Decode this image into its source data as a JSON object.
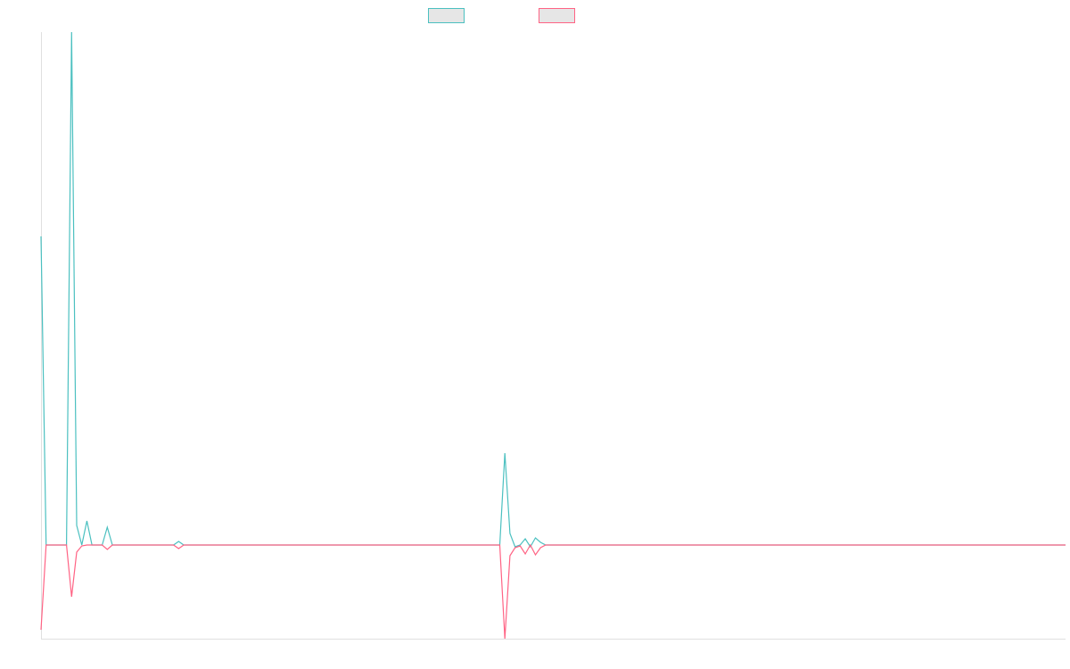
{
  "chart_data": {
    "type": "line",
    "ylim": [
      -105,
      575
    ],
    "series": [
      {
        "color": "#4bc0c0",
        "values": [
          346,
          0,
          0,
          0,
          0,
          0,
          575,
          22,
          0,
          27,
          0,
          0,
          0,
          20,
          0,
          0,
          0,
          0,
          0,
          0,
          0,
          0,
          0,
          0,
          0,
          0,
          0,
          4,
          0,
          0,
          0,
          0,
          0,
          0,
          0,
          0,
          0,
          0,
          0,
          0,
          0,
          0,
          0,
          0,
          0,
          0,
          0,
          0,
          0,
          0,
          0,
          0,
          0,
          0,
          0,
          0,
          0,
          0,
          0,
          0,
          0,
          0,
          0,
          0,
          0,
          0,
          0,
          0,
          0,
          0,
          0,
          0,
          0,
          0,
          0,
          0,
          0,
          0,
          0,
          0,
          0,
          0,
          0,
          0,
          0,
          0,
          0,
          0,
          0,
          0,
          0,
          103,
          13,
          -2,
          0,
          7,
          -2,
          8,
          3,
          0,
          0,
          0,
          0,
          0,
          0,
          0,
          0,
          0,
          0,
          0,
          0,
          0,
          0,
          0,
          0,
          0,
          0,
          0,
          0,
          0,
          0,
          0,
          0,
          0,
          0,
          0,
          0,
          0,
          0,
          0,
          0,
          0,
          0,
          0,
          0,
          0,
          0,
          0,
          0,
          0,
          0,
          0,
          0,
          0,
          0,
          0,
          0,
          0,
          0,
          0,
          0,
          0,
          0,
          0,
          0,
          0,
          0,
          0,
          0,
          0,
          0,
          0,
          0,
          0,
          0,
          0,
          0,
          0,
          0,
          0,
          0,
          0,
          0,
          0,
          0,
          0,
          0,
          0,
          0,
          0,
          0,
          0,
          0,
          0,
          0,
          0,
          0,
          0,
          0,
          0,
          0,
          0,
          0,
          0,
          0,
          0,
          0,
          0,
          0,
          0,
          0,
          0
        ]
      },
      {
        "color": "#ff6384",
        "values": [
          -95,
          0,
          0,
          0,
          0,
          0,
          -58,
          -8,
          -1,
          0,
          0,
          0,
          0,
          -5,
          0,
          0,
          0,
          0,
          0,
          0,
          0,
          0,
          0,
          0,
          0,
          0,
          0,
          -4,
          0,
          0,
          0,
          0,
          0,
          0,
          0,
          0,
          0,
          0,
          0,
          0,
          0,
          0,
          0,
          0,
          0,
          0,
          0,
          0,
          0,
          0,
          0,
          0,
          0,
          0,
          0,
          0,
          0,
          0,
          0,
          0,
          0,
          0,
          0,
          0,
          0,
          0,
          0,
          0,
          0,
          0,
          0,
          0,
          0,
          0,
          0,
          0,
          0,
          0,
          0,
          0,
          0,
          0,
          0,
          0,
          0,
          0,
          0,
          0,
          0,
          0,
          0,
          -105,
          -12,
          -3,
          -1,
          -10,
          0,
          -11,
          -3,
          0,
          0,
          0,
          0,
          0,
          0,
          0,
          0,
          0,
          0,
          0,
          0,
          0,
          0,
          0,
          0,
          0,
          0,
          0,
          0,
          0,
          0,
          0,
          0,
          0,
          0,
          0,
          0,
          0,
          0,
          0,
          0,
          0,
          0,
          0,
          0,
          0,
          0,
          0,
          0,
          0,
          0,
          0,
          0,
          0,
          0,
          0,
          0,
          0,
          0,
          0,
          0,
          0,
          0,
          0,
          0,
          0,
          0,
          0,
          0,
          0,
          0,
          0,
          0,
          0,
          0,
          0,
          0,
          0,
          0,
          0,
          0,
          0,
          0,
          0,
          0,
          0,
          0,
          0,
          0,
          0,
          0,
          0,
          0,
          0,
          0,
          0,
          0,
          0,
          0,
          0,
          0,
          0,
          0,
          0,
          0,
          0,
          0,
          0,
          0,
          0,
          0,
          0
        ]
      }
    ]
  }
}
